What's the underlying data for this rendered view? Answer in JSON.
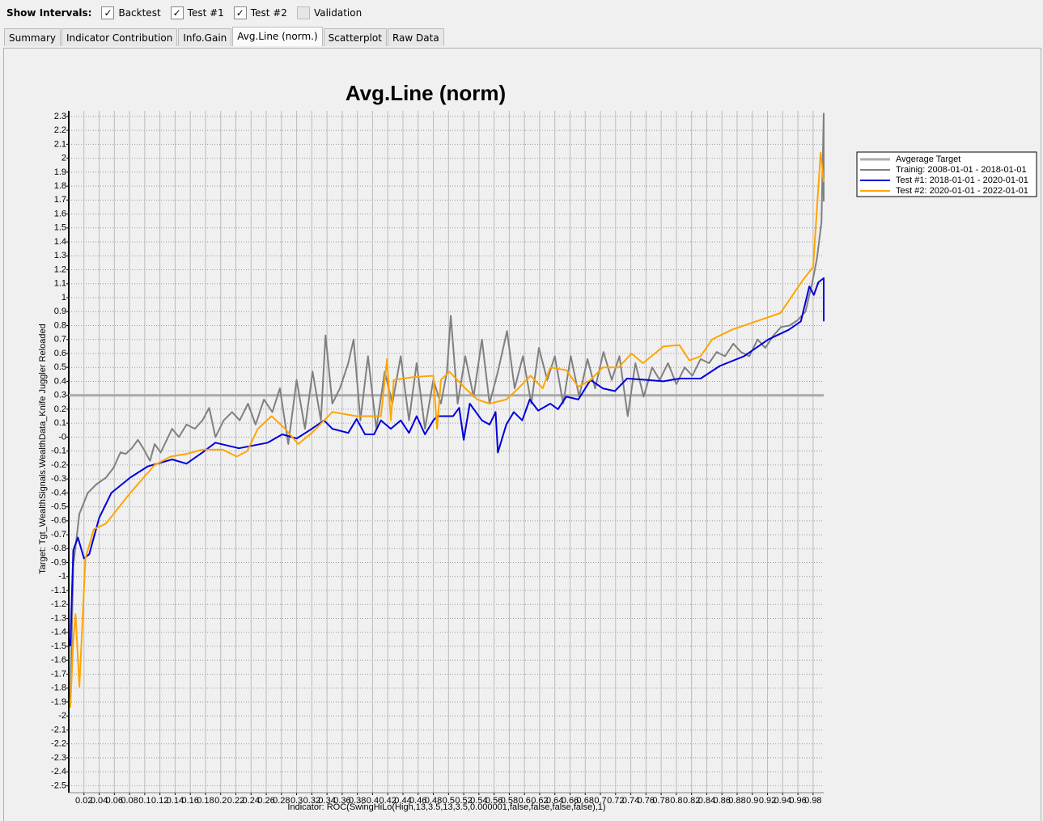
{
  "toolbar": {
    "label": "Show Intervals:",
    "checkboxes": [
      {
        "label": "Backtest",
        "checked": true
      },
      {
        "label": "Test #1",
        "checked": true
      },
      {
        "label": "Test #2",
        "checked": true
      },
      {
        "label": "Validation",
        "checked": false
      }
    ]
  },
  "tabs": {
    "items": [
      "Summary",
      "Indicator Contribution",
      "Info.Gain",
      "Avg.Line (norm.)",
      "Scatterplot",
      "Raw Data"
    ],
    "active": 3
  },
  "chart_data": {
    "type": "line",
    "title": "Avg.Line (norm)",
    "x_label": "Indicator: ROC(SwingHiLo(High,13,3.5,13,3.5,0.000001,false,false,false,false),1)",
    "y_label": "Target: Tgt_WealthSignals.WealthData_Knife Juggler Reloaded",
    "xlim": [
      0,
      0.994
    ],
    "ylim": [
      -2.55,
      2.34
    ],
    "xticks": [
      0.02,
      0.04,
      0.06,
      0.08,
      0.1,
      0.12,
      0.14,
      0.16,
      0.18,
      0.2,
      0.22,
      0.24,
      0.26,
      0.28,
      0.3,
      0.32,
      0.34,
      0.36,
      0.38,
      0.4,
      0.42,
      0.44,
      0.46,
      0.48,
      0.5,
      0.52,
      0.54,
      0.56,
      0.58,
      0.6,
      0.62,
      0.64,
      0.66,
      0.68,
      0.7,
      0.72,
      0.74,
      0.76,
      0.78,
      0.8,
      0.82,
      0.84,
      0.86,
      0.88,
      0.9,
      0.92,
      0.94,
      0.96,
      0.98
    ],
    "yticks": [
      2.3,
      2.2,
      2.1,
      2,
      1.9,
      1.8,
      1.7,
      1.6,
      1.5,
      1.4,
      1.3,
      1.2,
      1.1,
      1,
      0.9,
      0.8,
      0.7,
      0.6,
      0.5,
      0.4,
      0.3,
      0.2,
      0.1,
      {
        "value": 0,
        "label": "-0"
      },
      -0.1,
      -0.2,
      -0.3,
      -0.4,
      -0.5,
      -0.6,
      -0.7,
      -0.8,
      -0.9,
      -1,
      -1.1,
      -1.2,
      -1.3,
      -1.4,
      -1.5,
      -1.6,
      -1.7,
      -1.8,
      -1.9,
      -2,
      -2.1,
      -2.2,
      -2.3,
      -2.4,
      -2.5
    ],
    "grid": true,
    "legend": "right",
    "series": [
      {
        "name": "Avgerage Target",
        "color": "#aaaaaa",
        "width": 3,
        "x": [
          0,
          0.994
        ],
        "values": [
          0.3,
          0.3
        ]
      },
      {
        "name": "Trainig: 2008-01-01 - 2018-01-01",
        "color": "#808080",
        "width": 2,
        "x": [
          0.002,
          0.006,
          0.014,
          0.025,
          0.036,
          0.049,
          0.059,
          0.068,
          0.075,
          0.083,
          0.091,
          0.098,
          0.107,
          0.113,
          0.121,
          0.129,
          0.136,
          0.145,
          0.155,
          0.166,
          0.176,
          0.185,
          0.193,
          0.204,
          0.215,
          0.225,
          0.236,
          0.246,
          0.257,
          0.268,
          0.278,
          0.289,
          0.3,
          0.311,
          0.321,
          0.332,
          0.338,
          0.347,
          0.357,
          0.368,
          0.375,
          0.384,
          0.394,
          0.405,
          0.416,
          0.426,
          0.437,
          0.448,
          0.458,
          0.469,
          0.48,
          0.49,
          0.498,
          0.503,
          0.512,
          0.522,
          0.533,
          0.544,
          0.554,
          0.565,
          0.577,
          0.587,
          0.598,
          0.609,
          0.619,
          0.63,
          0.64,
          0.651,
          0.661,
          0.672,
          0.683,
          0.693,
          0.704,
          0.715,
          0.725,
          0.736,
          0.746,
          0.757,
          0.768,
          0.778,
          0.789,
          0.8,
          0.811,
          0.821,
          0.832,
          0.843,
          0.853,
          0.864,
          0.875,
          0.885,
          0.896,
          0.907,
          0.917,
          0.928,
          0.938,
          0.949,
          0.96,
          0.97,
          0.979,
          0.985,
          0.991,
          0.994,
          0.994
        ],
        "values": [
          -1.88,
          -0.92,
          -0.55,
          -0.4,
          -0.34,
          -0.29,
          -0.22,
          -0.11,
          -0.12,
          -0.08,
          -0.02,
          -0.08,
          -0.17,
          -0.05,
          -0.11,
          -0.02,
          0.06,
          0,
          0.09,
          0.06,
          0.12,
          0.21,
          0,
          0.12,
          0.18,
          0.12,
          0.24,
          0.09,
          0.27,
          0.18,
          0.35,
          -0.05,
          0.41,
          0.06,
          0.47,
          0.12,
          0.73,
          0.24,
          0.35,
          0.53,
          0.7,
          0.12,
          0.58,
          0.06,
          0.47,
          0.24,
          0.58,
          0.12,
          0.53,
          0.06,
          0.41,
          0.24,
          0.47,
          0.87,
          0.24,
          0.58,
          0.29,
          0.7,
          0.24,
          0.47,
          0.76,
          0.35,
          0.58,
          0.24,
          0.64,
          0.41,
          0.58,
          0.24,
          0.58,
          0.29,
          0.56,
          0.35,
          0.61,
          0.41,
          0.58,
          0.15,
          0.53,
          0.29,
          0.5,
          0.41,
          0.53,
          0.38,
          0.5,
          0.44,
          0.56,
          0.53,
          0.61,
          0.58,
          0.67,
          0.61,
          0.58,
          0.7,
          0.64,
          0.73,
          0.79,
          0.8,
          0.84,
          0.9,
          1.11,
          1.28,
          1.54,
          2.32,
          1.69
        ]
      },
      {
        "name": "Test #1: 2018-01-01 - 2020-01-01",
        "color": "#0000dd",
        "width": 2,
        "x": [
          0.002,
          0.006,
          0.012,
          0.02,
          0.027,
          0.04,
          0.056,
          0.081,
          0.104,
          0.136,
          0.155,
          0.176,
          0.193,
          0.224,
          0.262,
          0.281,
          0.3,
          0.32,
          0.336,
          0.347,
          0.368,
          0.379,
          0.39,
          0.402,
          0.411,
          0.424,
          0.437,
          0.448,
          0.458,
          0.469,
          0.48,
          0.485,
          0.506,
          0.514,
          0.52,
          0.528,
          0.544,
          0.554,
          0.562,
          0.565,
          0.576,
          0.586,
          0.597,
          0.607,
          0.618,
          0.634,
          0.644,
          0.655,
          0.671,
          0.687,
          0.703,
          0.719,
          0.735,
          0.762,
          0.783,
          0.804,
          0.832,
          0.857,
          0.889,
          0.921,
          0.948,
          0.964,
          0.975,
          0.981,
          0.987,
          0.994,
          0.994
        ],
        "values": [
          -1.5,
          -0.81,
          -0.72,
          -0.87,
          -0.84,
          -0.58,
          -0.4,
          -0.29,
          -0.21,
          -0.16,
          -0.19,
          -0.11,
          -0.04,
          -0.08,
          -0.04,
          0.02,
          -0.01,
          0.06,
          0.12,
          0.06,
          0.03,
          0.13,
          0.02,
          0.02,
          0.12,
          0.06,
          0.12,
          0.03,
          0.15,
          0.02,
          0.12,
          0.15,
          0.15,
          0.21,
          -0.02,
          0.24,
          0.12,
          0.09,
          0.18,
          -0.11,
          0.09,
          0.18,
          0.12,
          0.27,
          0.19,
          0.24,
          0.2,
          0.29,
          0.27,
          0.41,
          0.35,
          0.33,
          0.42,
          0.41,
          0.4,
          0.42,
          0.42,
          0.51,
          0.58,
          0.7,
          0.77,
          0.83,
          1.08,
          1.02,
          1.11,
          1.14,
          0.83
        ]
      },
      {
        "name": "Test #2: 2020-01-01 - 2022-01-01",
        "color": "#ffa500",
        "width": 2,
        "x": [
          0.002,
          0.006,
          0.009,
          0.014,
          0.022,
          0.033,
          0.049,
          0.081,
          0.113,
          0.134,
          0.155,
          0.176,
          0.203,
          0.221,
          0.235,
          0.249,
          0.267,
          0.285,
          0.302,
          0.32,
          0.347,
          0.379,
          0.411,
          0.419,
          0.424,
          0.428,
          0.453,
          0.48,
          0.485,
          0.49,
          0.501,
          0.522,
          0.538,
          0.554,
          0.576,
          0.592,
          0.608,
          0.624,
          0.634,
          0.655,
          0.671,
          0.687,
          0.703,
          0.724,
          0.741,
          0.756,
          0.783,
          0.804,
          0.817,
          0.832,
          0.847,
          0.873,
          0.905,
          0.937,
          0.967,
          0.98,
          0.99,
          0.994
        ],
        "values": [
          -1.94,
          -1.45,
          -1.27,
          -1.79,
          -0.87,
          -0.66,
          -0.62,
          -0.4,
          -0.2,
          -0.14,
          -0.12,
          -0.09,
          -0.09,
          -0.14,
          -0.1,
          0.06,
          0.15,
          0.06,
          -0.05,
          0.03,
          0.18,
          0.15,
          0.15,
          0.56,
          0.12,
          0.41,
          0.43,
          0.44,
          0.06,
          0.41,
          0.47,
          0.35,
          0.27,
          0.24,
          0.27,
          0.35,
          0.44,
          0.35,
          0.5,
          0.48,
          0.36,
          0.41,
          0.5,
          0.5,
          0.6,
          0.53,
          0.65,
          0.66,
          0.55,
          0.58,
          0.7,
          0.77,
          0.83,
          0.89,
          1.13,
          1.22,
          2.04,
          1.83
        ]
      }
    ]
  }
}
